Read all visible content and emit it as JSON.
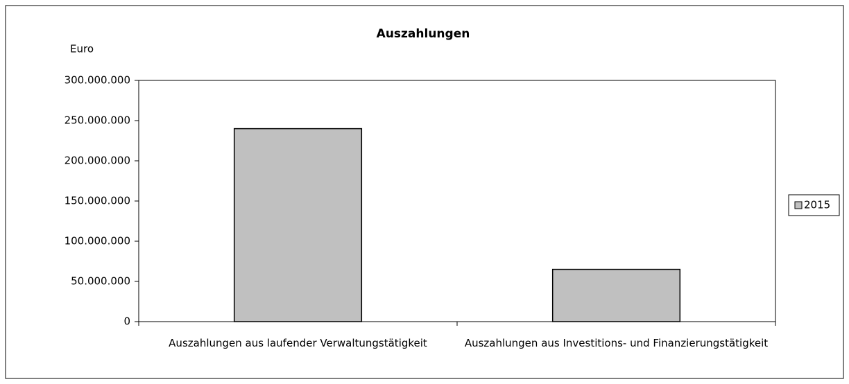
{
  "chart_data": {
    "type": "bar",
    "title": "Auszahlungen",
    "y_label": "Euro",
    "categories": [
      "Auszahlungen aus laufender Verwaltungstätigkeit",
      "Auszahlungen aus Investitions- und Finanzierungstätigkeit"
    ],
    "series": [
      {
        "name": "2015",
        "color": "#c0c0c0",
        "values": [
          240000000,
          65000000
        ]
      }
    ],
    "ylim": [
      0,
      300000000
    ],
    "yticks": [
      0,
      {
        "value": 50000000,
        "label": "50.000.000"
      },
      {
        "value": 100000000,
        "label": "100.000.000"
      },
      {
        "value": 150000000,
        "label": "150.000.000"
      },
      {
        "value": 200000000,
        "label": "200.000.000"
      },
      {
        "value": 250000000,
        "label": "250.000.000"
      },
      {
        "value": 300000000,
        "label": "300.000.000"
      }
    ],
    "grid": false,
    "legend": "right"
  }
}
